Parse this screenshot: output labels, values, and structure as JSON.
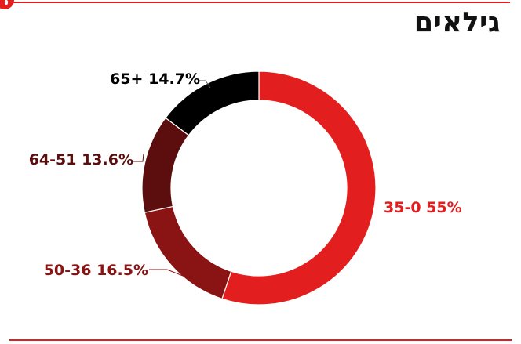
{
  "chart_data": {
    "type": "pie",
    "title": "גילאים",
    "donut": true,
    "slices": [
      {
        "label": "35-0",
        "value": 55,
        "display": "35-0 55%",
        "color": "#e21e1e"
      },
      {
        "label": "50-36",
        "value": 16.5,
        "display": "50-36 16.5%",
        "color": "#8a1414"
      },
      {
        "label": "64-51",
        "value": 13.6,
        "display": "64-51 13.6%",
        "color": "#5c0d0d"
      },
      {
        "label": "65+",
        "value": 14.7,
        "display": "65+ 14.7%",
        "color": "#000000"
      }
    ],
    "legend": "none"
  },
  "colors": {
    "accent": "#e21e1e",
    "title_text": "#111111"
  },
  "brand": {
    "icon": "brand-logo-icon"
  }
}
